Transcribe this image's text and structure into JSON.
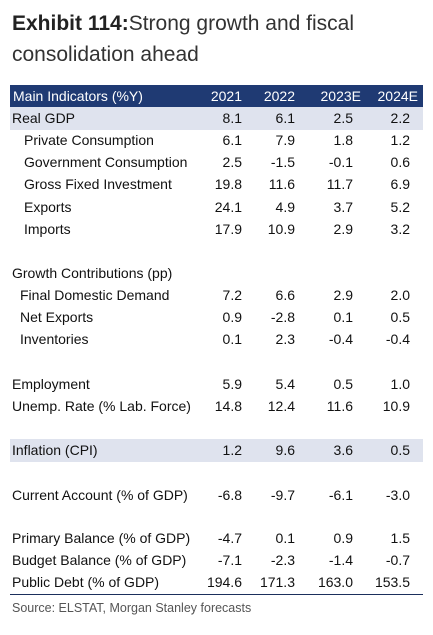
{
  "title": {
    "exhibit": "Exhibit 114:",
    "text": "Strong growth and fiscal consolidation ahead"
  },
  "table": {
    "header": [
      "Main Indicators (%Y)",
      "2021",
      "2022",
      "2023E",
      "2024E"
    ],
    "rows": [
      {
        "label": "Real GDP",
        "values": [
          "8.1",
          "6.1",
          "2.5",
          "2.2"
        ]
      },
      {
        "label": "Private Consumption",
        "values": [
          "6.1",
          "7.9",
          "1.8",
          "1.2"
        ]
      },
      {
        "label": "Government Consumption",
        "values": [
          "2.5",
          "-1.5",
          "-0.1",
          "0.6"
        ]
      },
      {
        "label": "Gross Fixed Investment",
        "values": [
          "19.8",
          "11.6",
          "11.7",
          "6.9"
        ]
      },
      {
        "label": "Exports",
        "values": [
          "24.1",
          "4.9",
          "3.7",
          "5.2"
        ]
      },
      {
        "label": "Imports",
        "values": [
          "17.9",
          "10.9",
          "2.9",
          "3.2"
        ]
      },
      {
        "label": "Growth Contributions (pp)",
        "values": [
          "",
          "",
          "",
          ""
        ]
      },
      {
        "label": "Final Domestic Demand",
        "values": [
          "7.2",
          "6.6",
          "2.9",
          "2.0"
        ]
      },
      {
        "label": "Net Exports",
        "values": [
          "0.9",
          "-2.8",
          "0.1",
          "0.5"
        ]
      },
      {
        "label": "Inventories",
        "values": [
          "0.1",
          "2.3",
          "-0.4",
          "-0.4"
        ]
      },
      {
        "label": "Employment",
        "values": [
          "5.9",
          "5.4",
          "0.5",
          "1.0"
        ]
      },
      {
        "label": "Unemp. Rate (% Lab. Force)",
        "values": [
          "14.8",
          "12.4",
          "11.6",
          "10.9"
        ]
      },
      {
        "label": "Inflation (CPI)",
        "values": [
          "1.2",
          "9.6",
          "3.6",
          "0.5"
        ]
      },
      {
        "label": "Current Account (% of GDP)",
        "values": [
          "-6.8",
          "-9.7",
          "-6.1",
          "-3.0"
        ]
      },
      {
        "label": "Primary Balance (% of GDP)",
        "values": [
          "-4.7",
          "0.1",
          "0.9",
          "1.5"
        ]
      },
      {
        "label": "Budget Balance (% of GDP)",
        "values": [
          "-7.1",
          "-2.3",
          "-1.4",
          "-0.7"
        ]
      },
      {
        "label": "Public Debt (% of GDP)",
        "values": [
          "194.6",
          "171.3",
          "163.0",
          "153.5"
        ]
      }
    ]
  },
  "source": "Source: ELSTAT, Morgan Stanley forecasts",
  "colors": {
    "header_bg": "#1f3a73",
    "band_bg": "#dfe3ee"
  }
}
